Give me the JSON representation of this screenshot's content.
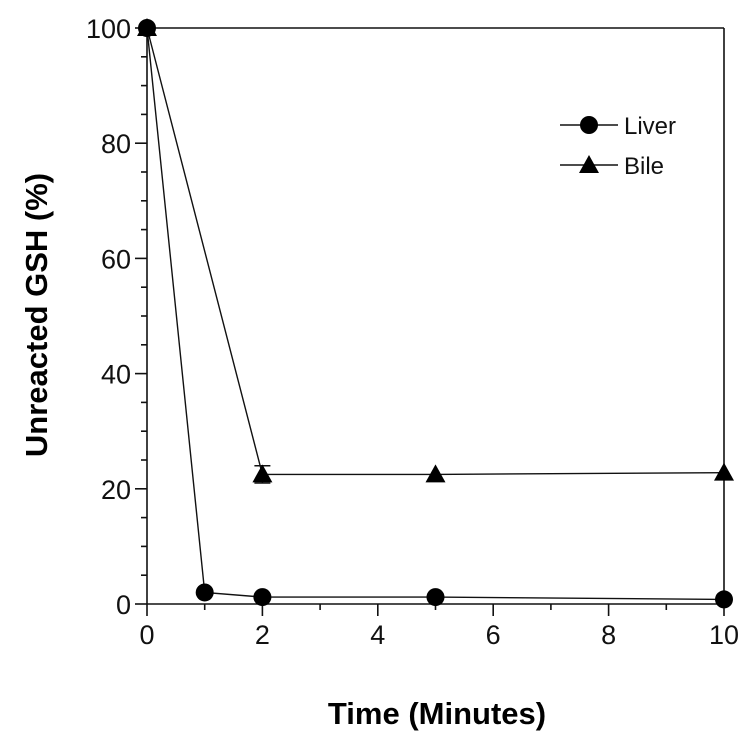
{
  "chart_data": {
    "type": "line",
    "xlabel": "Time (Minutes)",
    "ylabel": "Unreacted GSH (%)",
    "xlim": [
      0,
      10
    ],
    "ylim": [
      0,
      100
    ],
    "xticks": [
      0,
      2,
      4,
      6,
      8,
      10
    ],
    "yticks": [
      0,
      20,
      40,
      60,
      80,
      100
    ],
    "grid": false,
    "legend_position": "top-right",
    "series": [
      {
        "name": "Liver",
        "marker": "circle",
        "x": [
          0,
          1,
          2,
          5,
          10
        ],
        "y": [
          100,
          2,
          1.2,
          1.2,
          0.8
        ]
      },
      {
        "name": "Bile",
        "marker": "triangle",
        "x": [
          0,
          2,
          5,
          10
        ],
        "y": [
          100,
          22.5,
          22.5,
          22.8
        ],
        "error": [
          0,
          1.5,
          0,
          0
        ]
      }
    ]
  }
}
